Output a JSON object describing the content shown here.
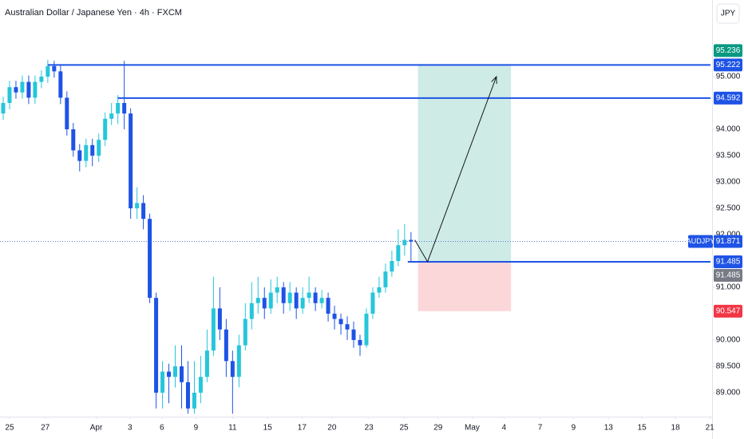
{
  "chart_data": {
    "type": "candlestick",
    "title": "Australian Dollar / Japanese Yen · 4h · FXCM",
    "currency": "JPY",
    "symbol": "AUDJPY",
    "up_color": "#26c6da",
    "down_color": "#1e53e5",
    "x": [
      0,
      1,
      2,
      3,
      4,
      5,
      6,
      7,
      8,
      9,
      10,
      11,
      12,
      13,
      14,
      15,
      16,
      17,
      18,
      19,
      20,
      21,
      22,
      23,
      24,
      25,
      26,
      27,
      28,
      29,
      30,
      31,
      32,
      33,
      34,
      35,
      36,
      37,
      38,
      39,
      40,
      41,
      42,
      43,
      44,
      45,
      46,
      47,
      48,
      49,
      50,
      51,
      52,
      53,
      54,
      55,
      56,
      57,
      58,
      59,
      60,
      61,
      62,
      63,
      64
    ],
    "open": [
      94.3,
      94.5,
      94.8,
      94.7,
      94.9,
      94.6,
      94.9,
      95.0,
      95.2,
      95.1,
      94.6,
      94.0,
      93.6,
      93.4,
      93.7,
      93.5,
      93.8,
      94.2,
      94.3,
      94.5,
      94.3,
      92.5,
      92.6,
      92.3,
      90.8,
      89.0,
      89.4,
      89.3,
      89.5,
      89.2,
      88.7,
      89.0,
      89.3,
      89.8,
      90.6,
      90.2,
      89.6,
      89.3,
      89.9,
      90.4,
      90.7,
      90.8,
      90.6,
      90.9,
      91.0,
      90.7,
      90.9,
      90.6,
      90.8,
      90.9,
      90.7,
      90.8,
      90.5,
      90.4,
      90.3,
      90.2,
      90.0,
      89.9,
      90.5,
      90.9,
      91.0,
      91.3,
      91.5,
      91.8,
      91.9
    ],
    "high": [
      94.62,
      94.92,
      94.92,
      95.02,
      95.02,
      95.02,
      95.12,
      95.32,
      95.3,
      95.22,
      94.72,
      94.12,
      93.72,
      93.82,
      93.82,
      93.92,
      94.32,
      94.5,
      94.65,
      95.3,
      94.4,
      92.9,
      92.75,
      92.4,
      90.9,
      89.6,
      89.55,
      89.9,
      89.9,
      89.6,
      89.6,
      89.7,
      90.2,
      91.2,
      91.0,
      90.4,
      89.8,
      90.1,
      90.7,
      91.1,
      91.2,
      91.0,
      91.15,
      91.2,
      91.1,
      91.1,
      91.0,
      91.0,
      91.2,
      91.0,
      90.95,
      90.9,
      90.65,
      90.5,
      90.45,
      90.35,
      90.1,
      90.6,
      91.0,
      91.2,
      91.45,
      91.7,
      92.1,
      92.2,
      92.05
    ],
    "low": [
      94.18,
      94.38,
      94.58,
      94.58,
      94.48,
      94.48,
      94.78,
      94.88,
      94.98,
      94.48,
      93.88,
      93.48,
      93.2,
      93.28,
      93.3,
      93.38,
      93.68,
      94.08,
      94.1,
      94.0,
      92.3,
      92.3,
      92.1,
      90.7,
      88.7,
      88.7,
      88.8,
      89.1,
      88.7,
      88.6,
      88.6,
      88.8,
      89.2,
      89.7,
      90.0,
      89.3,
      88.6,
      89.1,
      89.8,
      90.2,
      90.5,
      90.4,
      90.5,
      90.7,
      90.5,
      90.55,
      90.4,
      90.5,
      90.7,
      90.55,
      90.6,
      90.35,
      90.2,
      90.1,
      90.0,
      89.85,
      89.7,
      89.85,
      90.4,
      90.8,
      90.9,
      91.2,
      91.4,
      91.6,
      91.5
    ],
    "close": [
      94.5,
      94.8,
      94.7,
      94.9,
      94.6,
      94.9,
      95.0,
      95.2,
      95.1,
      94.6,
      94.0,
      93.6,
      93.4,
      93.7,
      93.5,
      93.8,
      94.2,
      94.3,
      94.5,
      94.3,
      92.5,
      92.6,
      92.3,
      90.8,
      89.0,
      89.4,
      89.3,
      89.5,
      89.2,
      88.7,
      89.0,
      89.3,
      89.8,
      90.6,
      90.2,
      89.6,
      89.3,
      89.9,
      90.4,
      90.7,
      90.8,
      90.6,
      90.9,
      91.0,
      90.7,
      90.9,
      90.6,
      90.8,
      90.9,
      90.7,
      90.8,
      90.5,
      90.4,
      90.3,
      90.2,
      90.0,
      89.9,
      90.5,
      90.9,
      91.0,
      91.3,
      91.5,
      91.8,
      91.9,
      91.87
    ],
    "xlim": [
      -0.5,
      111
    ],
    "xticks": [
      {
        "value": 1,
        "label": "25"
      },
      {
        "value": 6.6,
        "label": "27"
      },
      {
        "value": 14.6,
        "label": "Apr"
      },
      {
        "value": 19.9,
        "label": "3"
      },
      {
        "value": 24.9,
        "label": "6"
      },
      {
        "value": 30.25,
        "label": "9"
      },
      {
        "value": 36,
        "label": "11"
      },
      {
        "value": 41.5,
        "label": "15"
      },
      {
        "value": 46.9,
        "label": "17"
      },
      {
        "value": 51.6,
        "label": "20"
      },
      {
        "value": 57.4,
        "label": "23"
      },
      {
        "value": 62.9,
        "label": "25"
      },
      {
        "value": 68.25,
        "label": "29"
      },
      {
        "value": 73.6,
        "label": "May"
      },
      {
        "value": 78.6,
        "label": "4"
      },
      {
        "value": 84.25,
        "label": "7"
      },
      {
        "value": 89.5,
        "label": "9"
      },
      {
        "value": 95,
        "label": "13"
      },
      {
        "value": 100.25,
        "label": "15"
      },
      {
        "value": 105.5,
        "label": "18"
      },
      {
        "value": 110.9,
        "label": "21"
      }
    ],
    "ylim": [
      88.545,
      96.4545
    ],
    "yticks": [
      {
        "value": 89,
        "label": "89.000"
      },
      {
        "value": 89.5,
        "label": "89.500"
      },
      {
        "value": 90,
        "label": "90.000"
      },
      {
        "value": 91,
        "label": "91.000"
      },
      {
        "value": 92,
        "label": "92.000"
      },
      {
        "value": 92.5,
        "label": "92.500"
      },
      {
        "value": 93,
        "label": "93.000"
      },
      {
        "value": 93.5,
        "label": "93.500"
      },
      {
        "value": 94,
        "label": "94.000"
      },
      {
        "value": 95,
        "label": "95.000"
      }
    ],
    "levels": [
      {
        "value": 95.222,
        "label": "95.222",
        "from": 7
      },
      {
        "value": 94.592,
        "label": "94.592",
        "from": 18
      },
      {
        "value": 91.485,
        "label": "91.485",
        "from": 63.5
      }
    ],
    "current_price": {
      "value": 91.871,
      "label": "91.871"
    },
    "position": {
      "target": {
        "value": 95.236,
        "label": "95.236"
      },
      "entry": {
        "value": 91.485,
        "label": "91.485"
      },
      "stop": {
        "value": 90.547,
        "label": "90.547"
      },
      "x_start": 65.1,
      "x_end": 79.7
    },
    "arrow": [
      [
        64.6,
        91.9
      ],
      [
        66.6,
        91.485
      ],
      [
        77.4,
        95.0
      ]
    ]
  }
}
